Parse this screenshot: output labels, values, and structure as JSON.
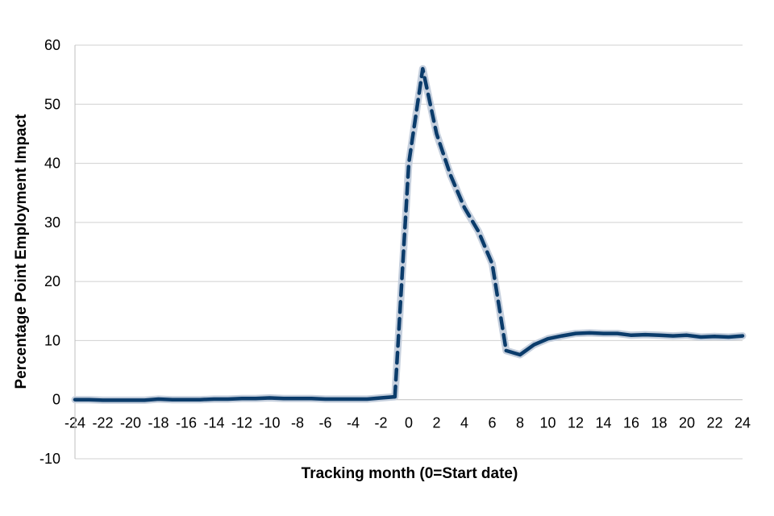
{
  "chart_data": {
    "type": "line",
    "title": "",
    "xlabel": "Tracking month (0=Start date)",
    "ylabel": "Percentage Point Employment Impact",
    "xlim": [
      -24,
      24
    ],
    "ylim": [
      -10,
      60
    ],
    "yticks": [
      -10,
      0,
      10,
      20,
      30,
      40,
      50,
      60
    ],
    "xticks": [
      -24,
      -22,
      -20,
      -18,
      -16,
      -14,
      -12,
      -10,
      -8,
      -6,
      -4,
      -2,
      0,
      2,
      4,
      6,
      8,
      10,
      12,
      14,
      16,
      18,
      20,
      22,
      24
    ],
    "grid": true,
    "legend": "none",
    "colors": {
      "line": "#0b3c6b",
      "band": "#c5cfdd",
      "grid": "#d0d0d0",
      "axis": "#bfbfbf"
    },
    "series": [
      {
        "x": [
          -24,
          -23,
          -22,
          -21,
          -20,
          -19,
          -18,
          -17,
          -16,
          -15,
          -14,
          -13,
          -12,
          -11,
          -10,
          -9,
          -8,
          -7,
          -6,
          -5,
          -4,
          -3,
          -2,
          -1,
          0,
          1,
          2,
          3,
          4,
          5,
          6,
          7,
          8,
          9,
          10,
          11,
          12,
          13,
          14,
          15,
          16,
          17,
          18,
          19,
          20,
          21,
          22,
          23,
          24
        ],
        "values": [
          0,
          0,
          -0.1,
          -0.1,
          -0.1,
          -0.1,
          0.1,
          0,
          0,
          0,
          0.1,
          0.1,
          0.2,
          0.2,
          0.3,
          0.2,
          0.2,
          0.2,
          0.1,
          0.1,
          0.1,
          0.1,
          0.3,
          0.5,
          40,
          56,
          45,
          38,
          32.5,
          28.5,
          23,
          8.3,
          7.6,
          9.3,
          10.3,
          10.8,
          11.2,
          11.3,
          11.2,
          11.2,
          10.9,
          11,
          10.9,
          10.8,
          10.9,
          10.6,
          10.7,
          10.6,
          10.8
        ],
        "style": [
          {
            "x_from": -24,
            "x_to": -1,
            "line": "solid"
          },
          {
            "x_from": -1,
            "x_to": 7,
            "line": "dashed"
          },
          {
            "x_from": 7,
            "x_to": 24,
            "line": "solid"
          }
        ]
      }
    ]
  }
}
